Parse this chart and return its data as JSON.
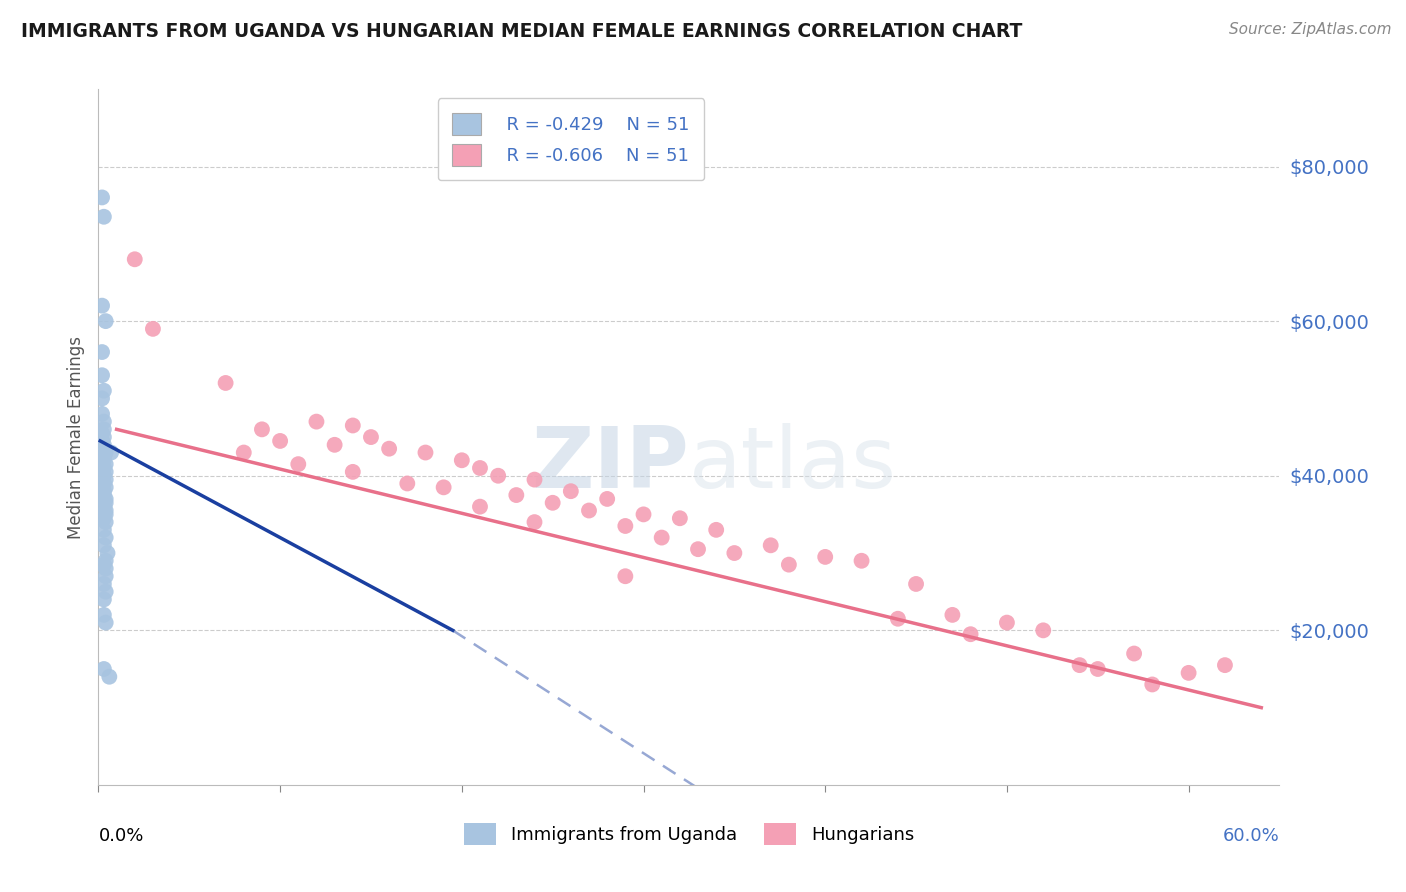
{
  "title": "IMMIGRANTS FROM UGANDA VS HUNGARIAN MEDIAN FEMALE EARNINGS CORRELATION CHART",
  "source": "Source: ZipAtlas.com",
  "ylabel": "Median Female Earnings",
  "right_yticks": [
    "$80,000",
    "$60,000",
    "$40,000",
    "$20,000"
  ],
  "right_ytick_vals": [
    80000,
    60000,
    40000,
    20000
  ],
  "ylim": [
    0,
    90000
  ],
  "xlim": [
    0.0,
    0.65
  ],
  "legend_r1": "R = -0.429",
  "legend_n1": "N = 51",
  "legend_r2": "R = -0.606",
  "legend_n2": "N = 51",
  "watermark_zip": "ZIP",
  "watermark_atlas": "atlas",
  "blue_color": "#a8c4e0",
  "pink_color": "#f4a0b5",
  "blue_line_color": "#1a3fa0",
  "pink_line_color": "#e8708a",
  "blue_scatter": [
    [
      0.002,
      76000
    ],
    [
      0.003,
      73500
    ],
    [
      0.002,
      62000
    ],
    [
      0.004,
      60000
    ],
    [
      0.002,
      56000
    ],
    [
      0.002,
      53000
    ],
    [
      0.003,
      51000
    ],
    [
      0.002,
      50000
    ],
    [
      0.002,
      48000
    ],
    [
      0.003,
      47000
    ],
    [
      0.003,
      46000
    ],
    [
      0.002,
      45500
    ],
    [
      0.003,
      45000
    ],
    [
      0.002,
      44500
    ],
    [
      0.003,
      44000
    ],
    [
      0.003,
      43500
    ],
    [
      0.004,
      43000
    ],
    [
      0.003,
      42500
    ],
    [
      0.003,
      42000
    ],
    [
      0.004,
      41500
    ],
    [
      0.003,
      41000
    ],
    [
      0.004,
      40500
    ],
    [
      0.003,
      40000
    ],
    [
      0.004,
      39500
    ],
    [
      0.003,
      39000
    ],
    [
      0.004,
      38500
    ],
    [
      0.003,
      38000
    ],
    [
      0.003,
      37500
    ],
    [
      0.004,
      37000
    ],
    [
      0.004,
      36500
    ],
    [
      0.003,
      36000
    ],
    [
      0.004,
      35500
    ],
    [
      0.004,
      35000
    ],
    [
      0.003,
      34500
    ],
    [
      0.004,
      34000
    ],
    [
      0.003,
      33000
    ],
    [
      0.004,
      32000
    ],
    [
      0.003,
      31000
    ],
    [
      0.005,
      30000
    ],
    [
      0.004,
      29000
    ],
    [
      0.003,
      28500
    ],
    [
      0.004,
      28000
    ],
    [
      0.004,
      27000
    ],
    [
      0.003,
      26000
    ],
    [
      0.004,
      25000
    ],
    [
      0.003,
      24000
    ],
    [
      0.003,
      22000
    ],
    [
      0.004,
      21000
    ],
    [
      0.003,
      15000
    ],
    [
      0.006,
      14000
    ],
    [
      0.007,
      43000
    ]
  ],
  "pink_scatter": [
    [
      0.02,
      68000
    ],
    [
      0.03,
      59000
    ],
    [
      0.07,
      52000
    ],
    [
      0.12,
      47000
    ],
    [
      0.14,
      46500
    ],
    [
      0.09,
      46000
    ],
    [
      0.15,
      45000
    ],
    [
      0.1,
      44500
    ],
    [
      0.13,
      44000
    ],
    [
      0.16,
      43500
    ],
    [
      0.18,
      43000
    ],
    [
      0.08,
      43000
    ],
    [
      0.2,
      42000
    ],
    [
      0.11,
      41500
    ],
    [
      0.21,
      41000
    ],
    [
      0.14,
      40500
    ],
    [
      0.22,
      40000
    ],
    [
      0.24,
      39500
    ],
    [
      0.17,
      39000
    ],
    [
      0.19,
      38500
    ],
    [
      0.26,
      38000
    ],
    [
      0.23,
      37500
    ],
    [
      0.28,
      37000
    ],
    [
      0.25,
      36500
    ],
    [
      0.21,
      36000
    ],
    [
      0.27,
      35500
    ],
    [
      0.3,
      35000
    ],
    [
      0.32,
      34500
    ],
    [
      0.24,
      34000
    ],
    [
      0.29,
      33500
    ],
    [
      0.34,
      33000
    ],
    [
      0.31,
      32000
    ],
    [
      0.37,
      31000
    ],
    [
      0.33,
      30500
    ],
    [
      0.35,
      30000
    ],
    [
      0.4,
      29500
    ],
    [
      0.42,
      29000
    ],
    [
      0.38,
      28500
    ],
    [
      0.29,
      27000
    ],
    [
      0.45,
      26000
    ],
    [
      0.47,
      22000
    ],
    [
      0.44,
      21500
    ],
    [
      0.5,
      21000
    ],
    [
      0.52,
      20000
    ],
    [
      0.48,
      19500
    ],
    [
      0.57,
      17000
    ],
    [
      0.62,
      15500
    ],
    [
      0.54,
      15500
    ],
    [
      0.55,
      15000
    ],
    [
      0.6,
      14500
    ],
    [
      0.58,
      13000
    ]
  ],
  "blue_line": [
    [
      0.002,
      44500
    ],
    [
      0.2,
      20000
    ]
  ],
  "blue_line_dashed": [
    [
      0.2,
      20000
    ],
    [
      0.37,
      -5000
    ]
  ],
  "pink_line": [
    [
      0.02,
      46000
    ],
    [
      0.62,
      10000
    ]
  ]
}
